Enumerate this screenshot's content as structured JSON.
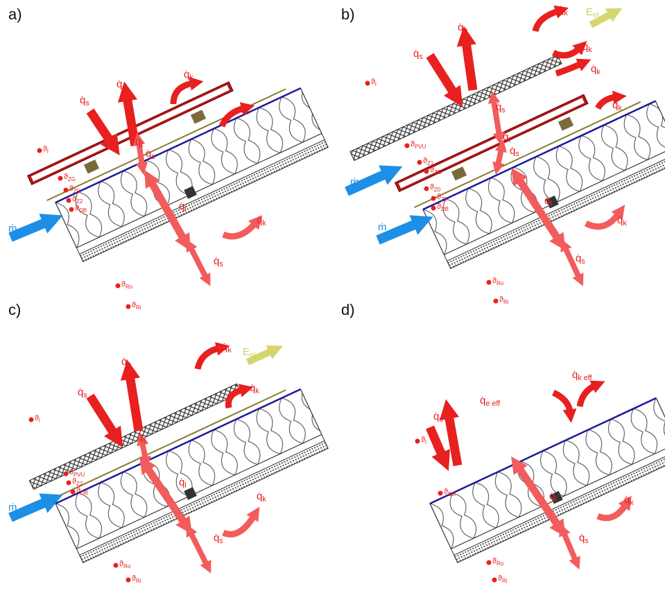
{
  "panels": [
    {
      "label": "a)",
      "labels": [
        {
          "base": "q̇",
          "sub": "s"
        },
        {
          "base": "q̇",
          "sub": "e"
        },
        {
          "base": "q̇",
          "sub": "k"
        },
        {
          "base": "q̇",
          "sub": "k"
        },
        {
          "base": "q̇",
          "sub": "t"
        },
        {
          "base": "q̇",
          "sub": "s"
        },
        {
          "base": "q̇",
          "sub": "l"
        },
        {
          "base": "q̇",
          "sub": "k"
        },
        {
          "base": "q̇",
          "sub": "s"
        },
        {
          "base": "ṁ",
          "sub": ""
        },
        {
          "base": "ϑ",
          "sub": "l"
        },
        {
          "base": "ϑ",
          "sub": "ZG"
        },
        {
          "base": "ϑ",
          "sub": "Z0"
        },
        {
          "base": "ϑ",
          "sub": "Z2"
        },
        {
          "base": "ϑ",
          "sub": "DB"
        },
        {
          "base": "ϑ",
          "sub": "Ro"
        },
        {
          "base": "ϑ",
          "sub": "Ri"
        }
      ]
    },
    {
      "label": "b)",
      "labels": [
        {
          "base": "q̇",
          "sub": "s"
        },
        {
          "base": "q̇",
          "sub": "e"
        },
        {
          "base": "q̇",
          "sub": "k"
        },
        {
          "base": "q̇",
          "sub": "k"
        },
        {
          "base": "q̇",
          "sub": "k"
        },
        {
          "base": "q̇",
          "sub": "s"
        },
        {
          "base": "q̇",
          "sub": "t"
        },
        {
          "base": "q̇",
          "sub": "s"
        },
        {
          "base": "q̇",
          "sub": "k"
        },
        {
          "base": "q̇",
          "sub": "l"
        },
        {
          "base": "q̇",
          "sub": "k"
        },
        {
          "base": "q̇",
          "sub": "s"
        },
        {
          "base": "ṁ",
          "sub": ""
        },
        {
          "base": "ṁ",
          "sub": ""
        },
        {
          "base": "E",
          "sub": "el."
        },
        {
          "base": "ϑ",
          "sub": "l"
        },
        {
          "base": "ϑ",
          "sub": "PVU"
        },
        {
          "base": "ϑ",
          "sub": "Z1"
        },
        {
          "base": "ϑ",
          "sub": "ZG"
        },
        {
          "base": "ϑ",
          "sub": "Z0"
        },
        {
          "base": "ϑ",
          "sub": "Z2"
        },
        {
          "base": "ϑ",
          "sub": "DB"
        },
        {
          "base": "ϑ",
          "sub": "Ro"
        },
        {
          "base": "ϑ",
          "sub": "Ri"
        }
      ]
    },
    {
      "label": "c)",
      "labels": [
        {
          "base": "q̇",
          "sub": "s"
        },
        {
          "base": "q̇",
          "sub": "e"
        },
        {
          "base": "q̇",
          "sub": "k"
        },
        {
          "base": "q̇",
          "sub": "k"
        },
        {
          "base": "q̇",
          "sub": "s"
        },
        {
          "base": "q̇",
          "sub": "l"
        },
        {
          "base": "q̇",
          "sub": "k"
        },
        {
          "base": "q̇",
          "sub": "s"
        },
        {
          "base": "ṁ",
          "sub": ""
        },
        {
          "base": "E",
          "sub": "el."
        },
        {
          "base": "ϑ",
          "sub": "l"
        },
        {
          "base": "ϑ",
          "sub": "PVU"
        },
        {
          "base": "ϑ",
          "sub": "Z2"
        },
        {
          "base": "ϑ",
          "sub": "DB"
        },
        {
          "base": "ϑ",
          "sub": "Ro"
        },
        {
          "base": "ϑ",
          "sub": "Ri"
        }
      ]
    },
    {
      "label": "d)",
      "labels": [
        {
          "base": "q̇",
          "sub": "s eff"
        },
        {
          "base": "q̇",
          "sub": "e eff"
        },
        {
          "base": "q̇",
          "sub": "k eff"
        },
        {
          "base": "q̇",
          "sub": "l"
        },
        {
          "base": "q̇",
          "sub": "k"
        },
        {
          "base": "q̇",
          "sub": "s"
        },
        {
          "base": "ϑ",
          "sub": "l"
        },
        {
          "base": "ϑ",
          "sub": "DB"
        },
        {
          "base": "ϑ",
          "sub": "Ro"
        },
        {
          "base": "ϑ",
          "sub": "Ri"
        }
      ]
    }
  ]
}
